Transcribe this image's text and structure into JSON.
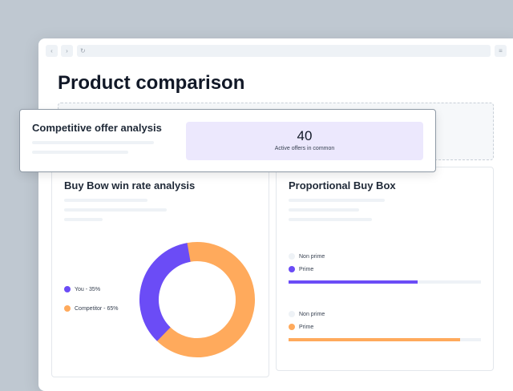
{
  "browser": {
    "back": "‹",
    "forward": "›",
    "reload": "↻",
    "menu": "≡"
  },
  "page_title": "Product comparison",
  "offer": {
    "title": "Competitive offer analysis",
    "value": "40",
    "caption": "Active offers in common"
  },
  "winrate": {
    "title": "Buy Bow win rate analysis",
    "legend": [
      {
        "label": "You - 35%",
        "color": "#6b4cf6"
      },
      {
        "label": "Competitor - 65%",
        "color": "#ffaa5c"
      }
    ]
  },
  "chart_data": {
    "type": "pie",
    "variant": "donut",
    "categories": [
      "You",
      "Competitor"
    ],
    "values": [
      35,
      65
    ],
    "colors": [
      "#6b4cf6",
      "#ffaa5c"
    ]
  },
  "buybox": {
    "title": "Proportional Buy Box",
    "groups": [
      {
        "nonprime": "Non prime",
        "prime": "Prime",
        "prime_percent": 67,
        "color": "#6b4cf6"
      },
      {
        "nonprime": "Non prime",
        "prime": "Prime",
        "prime_percent": 89,
        "color": "#ffaa5c"
      }
    ]
  }
}
